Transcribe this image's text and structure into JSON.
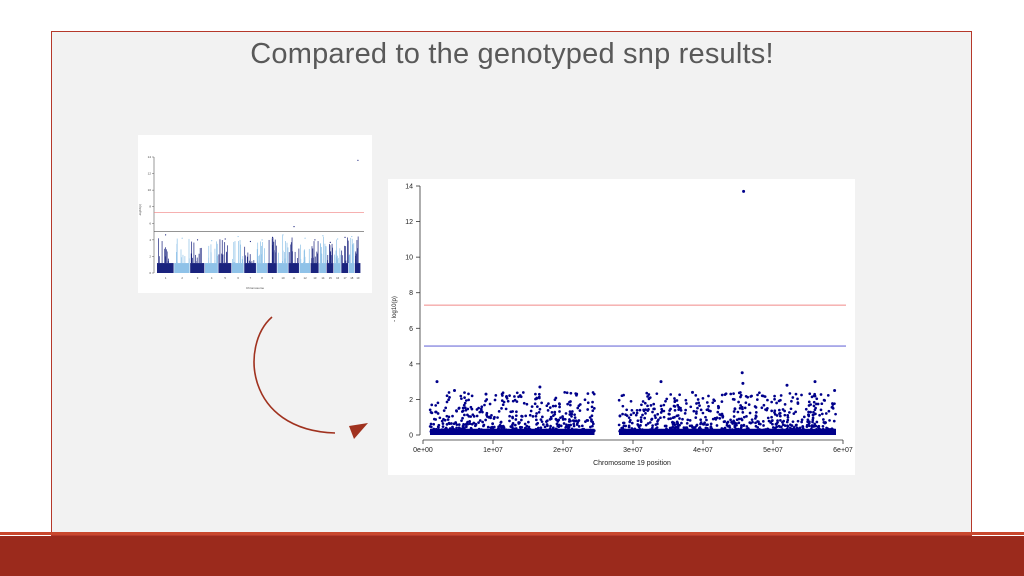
{
  "slide": {
    "title": "Compared to the genotyped snp results!",
    "colors": {
      "frame_border": "#b5382a",
      "bottom_bar": "#9b2a1c",
      "arrow": "#a0321f",
      "background": "#f2f2f2"
    }
  },
  "chart_data": [
    {
      "type": "scatter",
      "title": "",
      "xlabel": "Chromosome",
      "ylabel": "-log10(p)",
      "ylim": [
        0,
        14
      ],
      "yticks": [
        0,
        2,
        4,
        6,
        8,
        10,
        12,
        14
      ],
      "categories": [
        "1",
        "2",
        "3",
        "4",
        "5",
        "6",
        "7",
        "8",
        "9",
        "10",
        "11",
        "12",
        "13",
        "14",
        "15",
        "16",
        "17",
        "18",
        "19"
      ],
      "series": [
        {
          "points": [
            {
              "x": "1",
              "y": 4.6
            },
            {
              "x": "2",
              "y": 4.2
            },
            {
              "x": "3",
              "y": 4.0
            },
            {
              "x": "4",
              "y": 3.9
            },
            {
              "x": "5",
              "y": 4.1
            },
            {
              "x": "6",
              "y": 4.4
            },
            {
              "x": "7",
              "y": 3.8
            },
            {
              "x": "8",
              "y": 4.0
            },
            {
              "x": "9",
              "y": 4.3
            },
            {
              "x": "10",
              "y": 4.6
            },
            {
              "x": "11",
              "y": 5.6
            },
            {
              "x": "12",
              "y": 4.2
            },
            {
              "x": "13",
              "y": 4.0
            },
            {
              "x": "14",
              "y": 4.5
            },
            {
              "x": "15",
              "y": 3.7
            },
            {
              "x": "16",
              "y": 4.1
            },
            {
              "x": "17",
              "y": 4.3
            },
            {
              "x": "18",
              "y": 4.4
            },
            {
              "x": "19",
              "y": 13.6
            }
          ]
        }
      ],
      "thresholds": [
        {
          "y": 7.3,
          "color": "#f08080"
        },
        {
          "y": 5.0,
          "color": "#555555"
        }
      ],
      "colors": [
        "#1a237e",
        "#8fc2e8"
      ],
      "grid": false
    },
    {
      "type": "scatter",
      "title": "",
      "xlabel": "Chromosome 19 position",
      "ylabel": "- log10(p)",
      "xlim": [
        0,
        60000000
      ],
      "ylim": [
        0,
        14
      ],
      "xticks": [
        {
          "v": 0,
          "label": "0e+00"
        },
        {
          "v": 10000000,
          "label": "1e+07"
        },
        {
          "v": 20000000,
          "label": "2e+07"
        },
        {
          "v": 30000000,
          "label": "3e+07"
        },
        {
          "v": 40000000,
          "label": "4e+07"
        },
        {
          "v": 50000000,
          "label": "5e+07"
        },
        {
          "v": 60000000,
          "label": "6e+07"
        }
      ],
      "yticks": [
        0,
        2,
        4,
        6,
        8,
        10,
        12,
        14
      ],
      "thresholds": [
        {
          "y": 7.3,
          "color": "#f4a9a8"
        },
        {
          "y": 5.0,
          "color": "#8a8ae0"
        }
      ],
      "gap": [
        24500000,
        28000000
      ],
      "color": "#00008b",
      "grid": false,
      "points": [
        {
          "x": 45800000,
          "y": 13.7
        },
        {
          "x": 2000000,
          "y": 3.0
        },
        {
          "x": 16700000,
          "y": 2.7
        },
        {
          "x": 34000000,
          "y": 3.0
        },
        {
          "x": 45600000,
          "y": 3.5
        },
        {
          "x": 45700000,
          "y": 2.9
        },
        {
          "x": 52000000,
          "y": 2.8
        },
        {
          "x": 56000000,
          "y": 3.0
        },
        {
          "x": 38500000,
          "y": 2.4
        },
        {
          "x": 9000000,
          "y": 2.3
        },
        {
          "x": 58800000,
          "y": 2.5
        },
        {
          "x": 4500000,
          "y": 2.5
        }
      ]
    }
  ]
}
